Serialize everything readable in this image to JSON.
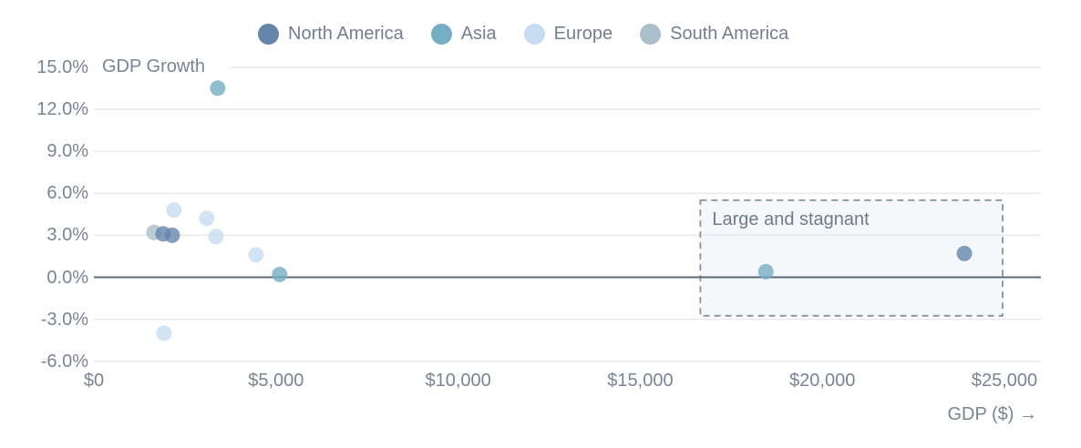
{
  "chart_data": {
    "type": "scatter",
    "title": "",
    "ylabel": "GDP Growth",
    "xlabel": "GDP ($) →",
    "x_domain": [
      0,
      26000
    ],
    "y_domain": [
      -7,
      15.5
    ],
    "grid": true,
    "legend_position": "top",
    "x_ticks": [
      {
        "label": "$0",
        "value": 0
      },
      {
        "label": "$5,000",
        "value": 5000
      },
      {
        "label": "$10,000",
        "value": 10000
      },
      {
        "label": "$15,000",
        "value": 15000
      },
      {
        "label": "$20,000",
        "value": 20000
      },
      {
        "label": "$25,000",
        "value": 25000
      }
    ],
    "y_ticks": [
      {
        "label": "15.0%",
        "value": 15
      },
      {
        "label": "12.0%",
        "value": 12
      },
      {
        "label": "9.0%",
        "value": 9
      },
      {
        "label": "6.0%",
        "value": 6
      },
      {
        "label": "3.0%",
        "value": 3
      },
      {
        "label": "0.0%",
        "value": 0
      },
      {
        "label": "-3.0%",
        "value": -3
      },
      {
        "label": "-6.0%",
        "value": -6
      }
    ],
    "series": [
      {
        "name": "North America",
        "color": "#6586ac",
        "points": [
          {
            "gdp": 1900,
            "growth": 3.1
          },
          {
            "gdp": 2150,
            "growth": 3.0
          },
          {
            "gdp": 23900,
            "growth": 1.7
          }
        ]
      },
      {
        "name": "Asia",
        "color": "#76aec3",
        "points": [
          {
            "gdp": 3400,
            "growth": 13.5
          },
          {
            "gdp": 5100,
            "growth": 0.2
          },
          {
            "gdp": 18450,
            "growth": 0.4
          }
        ]
      },
      {
        "name": "Europe",
        "color": "#c7dcf0",
        "points": [
          {
            "gdp": 2200,
            "growth": 4.8
          },
          {
            "gdp": 3100,
            "growth": 4.2
          },
          {
            "gdp": 3350,
            "growth": 2.9
          },
          {
            "gdp": 4450,
            "growth": 1.6
          },
          {
            "gdp": 1925,
            "growth": -4.0
          }
        ]
      },
      {
        "name": "South America",
        "color": "#aabfca",
        "points": [
          {
            "gdp": 1650,
            "growth": 3.2
          }
        ]
      }
    ],
    "annotation": {
      "label": "Large and stagnant",
      "x0": 16650,
      "x1": 24950,
      "y0": -2.75,
      "y1": 5.5
    }
  },
  "legend": {
    "items": [
      {
        "label": "North America",
        "color": "#6586ac"
      },
      {
        "label": "Asia",
        "color": "#76aec3"
      },
      {
        "label": "Europe",
        "color": "#c7dcf0"
      },
      {
        "label": "South America",
        "color": "#aabfca"
      }
    ]
  },
  "colors": {
    "grid": "#e7e8ed",
    "zero_line": "#5d6979",
    "text": "#7b8494",
    "annotation_border": "#8492a2",
    "annotation_fill": "rgba(219,229,240,0.28)",
    "annotation_text": "#6f7b8a",
    "point_opacity": "0.8"
  }
}
